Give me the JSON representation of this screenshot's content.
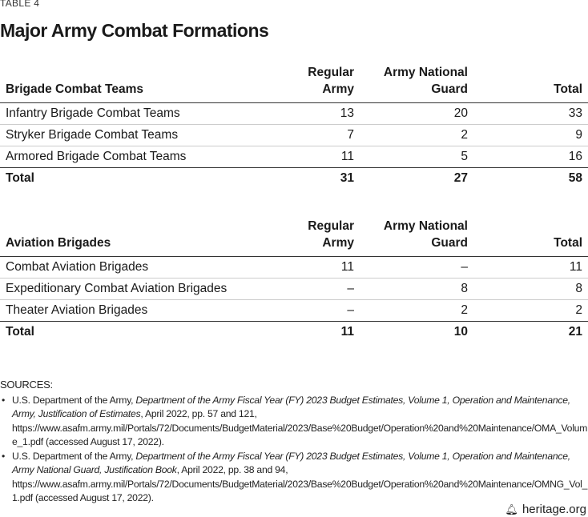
{
  "label": "TABLE 4",
  "title": "Major Army Combat Formations",
  "tables": [
    {
      "headers": [
        "Brigade Combat Teams",
        "Regular Army",
        "Army National Guard",
        "Total"
      ],
      "rows": [
        [
          "Infantry Brigade Combat Teams",
          "13",
          "20",
          "33"
        ],
        [
          "Stryker Brigade Combat Teams",
          "7",
          "2",
          "9"
        ],
        [
          "Armored Brigade Combat Teams",
          "11",
          "5",
          "16"
        ]
      ],
      "total": [
        "Total",
        "31",
        "27",
        "58"
      ]
    },
    {
      "headers": [
        "Aviation Brigades",
        "Regular Army",
        "Army National Guard",
        "Total"
      ],
      "rows": [
        [
          "Combat Aviation Brigades",
          "11",
          "–",
          "11"
        ],
        [
          "Expeditionary Combat Aviation Brigades",
          "–",
          "8",
          "8"
        ],
        [
          "Theater Aviation Brigades",
          "–",
          "2",
          "2"
        ]
      ],
      "total": [
        "Total",
        "11",
        "10",
        "21"
      ]
    }
  ],
  "sources": {
    "heading": "SOURCES:",
    "items": [
      {
        "pre": "U.S. Department of the Army, ",
        "italic": "Department of the Army Fiscal Year (FY) 2023 Budget Estimates, Volume 1, Operation and Maintenance, Army, Justification of Estimates",
        "post": ", April 2022, pp. 57 and 121, https://www.asafm.army.mil/Portals/72/Documents/BudgetMaterial/2023/Base%20Budget/Operation%20and%20Maintenance/OMA_Volume_1.pdf (accessed August 17, 2022)."
      },
      {
        "pre": "U.S. Department of the Army, ",
        "italic": "Department of the Army Fiscal Year (FY) 2023 Budget Estimates, Volume 1, Operation and Maintenance, Army National Guard, Justification Book",
        "post": ", April 2022, pp. 38 and 94, https://www.asafm.army.mil/Portals/72/Documents/BudgetMaterial/2023/Base%20Budget/Operation%20and%20Maintenance/OMNG_Vol_1.pdf (accessed August 17, 2022)."
      }
    ]
  },
  "footer": {
    "icon": "liberty-bell-icon",
    "text": "heritage.org"
  }
}
